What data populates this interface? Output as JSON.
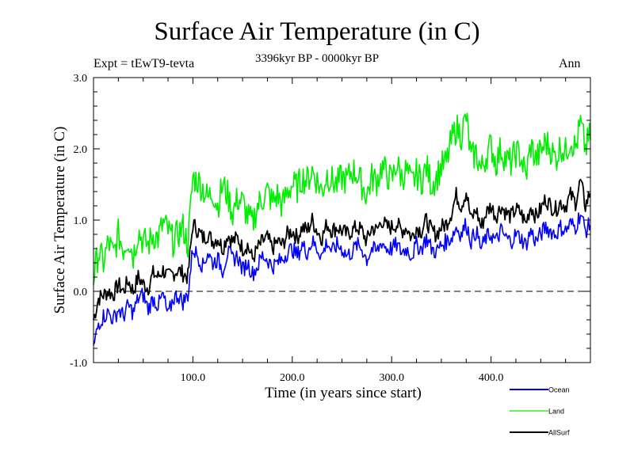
{
  "header": {
    "title": "Surface Air Temperature (in C)",
    "subtitle": "3396kyr BP - 0000kyr BP",
    "experiment": "Expt = tEwT9-tevta",
    "season": "Ann"
  },
  "chart_data": {
    "type": "line",
    "title": "Surface Air Temperature (in C)",
    "subtitle": "3396kyr BP - 0000kyr BP",
    "xlabel": "Time (in years since start)",
    "ylabel": "Surface Air Temperature (in C)",
    "xlim": [
      0,
      500
    ],
    "ylim": [
      -1.0,
      3.0
    ],
    "xticks": [
      100,
      200,
      300,
      400
    ],
    "xtick_labels": [
      "100.0",
      "200.0",
      "300.0",
      "400.0"
    ],
    "yticks": [
      -1.0,
      0.0,
      1.0,
      2.0,
      3.0
    ],
    "ytick_labels": [
      "-1.0",
      "0.0",
      "1.0",
      "2.0",
      "3.0"
    ],
    "reference_line": {
      "y": 0.0,
      "style": "dashed"
    },
    "grid": false,
    "legend_position": "bottom-right, outside plot",
    "x_step": 5,
    "series": [
      {
        "name": "Ocean",
        "color": "#0000ff",
        "values": [
          -0.8,
          -0.45,
          -0.35,
          -0.3,
          -0.4,
          -0.25,
          -0.35,
          -0.2,
          -0.3,
          -0.1,
          -0.05,
          -0.25,
          -0.1,
          -0.2,
          -0.05,
          -0.35,
          -0.1,
          -0.05,
          -0.15,
          -0.05,
          0.6,
          0.5,
          0.35,
          0.55,
          0.4,
          0.45,
          0.3,
          0.55,
          0.45,
          0.5,
          0.3,
          0.4,
          0.25,
          0.35,
          0.5,
          0.45,
          0.35,
          0.4,
          0.45,
          0.55,
          0.6,
          0.5,
          0.65,
          0.55,
          0.7,
          0.6,
          0.5,
          0.7,
          0.55,
          0.65,
          0.6,
          0.5,
          0.55,
          0.65,
          0.6,
          0.45,
          0.6,
          0.55,
          0.7,
          0.6,
          0.6,
          0.65,
          0.55,
          0.6,
          0.5,
          0.65,
          0.6,
          0.75,
          0.6,
          0.55,
          0.65,
          0.7,
          0.75,
          0.9,
          0.8,
          0.95,
          0.7,
          0.85,
          0.6,
          0.75,
          0.8,
          0.7,
          0.85,
          0.75,
          0.7,
          0.8,
          0.75,
          0.65,
          0.85,
          0.7,
          0.8,
          0.9,
          0.85,
          0.8,
          0.9,
          0.85,
          0.95,
          0.9,
          1.1,
          0.85,
          0.95
        ]
      },
      {
        "name": "Land",
        "color": "#00ee00",
        "values": [
          0.2,
          0.55,
          0.4,
          0.7,
          0.5,
          0.8,
          0.6,
          0.75,
          0.5,
          0.85,
          0.7,
          0.65,
          0.8,
          0.75,
          0.95,
          0.85,
          0.7,
          0.8,
          0.9,
          0.65,
          1.6,
          1.55,
          1.45,
          1.3,
          1.4,
          1.2,
          1.5,
          1.35,
          1.1,
          1.3,
          1.25,
          1.05,
          0.95,
          1.2,
          1.3,
          1.4,
          1.25,
          1.35,
          1.2,
          1.4,
          1.5,
          1.45,
          1.6,
          1.55,
          1.7,
          1.55,
          1.4,
          1.65,
          1.55,
          1.5,
          1.6,
          1.55,
          1.7,
          1.65,
          1.5,
          1.35,
          1.6,
          1.55,
          1.75,
          1.65,
          1.55,
          1.8,
          1.6,
          1.7,
          1.5,
          1.65,
          1.55,
          1.75,
          1.5,
          1.6,
          1.75,
          1.8,
          2.1,
          2.3,
          2.2,
          2.45,
          1.85,
          1.95,
          1.7,
          1.9,
          2.05,
          1.8,
          2.0,
          1.85,
          1.8,
          1.95,
          1.9,
          1.6,
          2.05,
          1.85,
          1.95,
          2.1,
          2.0,
          1.85,
          2.05,
          1.95,
          2.15,
          2.0,
          2.35,
          2.0,
          2.2
        ]
      },
      {
        "name": "AllSurf",
        "color": "#000000",
        "values": [
          -0.4,
          -0.1,
          -0.05,
          0.0,
          -0.05,
          0.1,
          0.0,
          0.15,
          0.0,
          0.2,
          0.1,
          0.05,
          0.25,
          0.2,
          0.3,
          0.2,
          0.25,
          0.3,
          0.25,
          0.2,
          0.95,
          0.85,
          0.75,
          0.8,
          0.7,
          0.75,
          0.6,
          0.8,
          0.7,
          0.75,
          0.6,
          0.65,
          0.45,
          0.6,
          0.7,
          0.75,
          0.6,
          0.7,
          0.65,
          0.8,
          0.85,
          0.75,
          0.9,
          0.85,
          1.0,
          0.85,
          0.75,
          0.95,
          0.85,
          0.9,
          0.85,
          0.8,
          0.85,
          0.9,
          0.85,
          0.7,
          0.9,
          0.85,
          1.0,
          0.9,
          0.9,
          0.95,
          0.85,
          0.9,
          0.75,
          0.9,
          0.85,
          1.0,
          0.85,
          0.8,
          0.9,
          0.95,
          1.1,
          1.35,
          1.2,
          1.4,
          1.0,
          1.15,
          0.9,
          1.1,
          1.2,
          1.05,
          1.2,
          1.1,
          1.05,
          1.15,
          1.1,
          0.95,
          1.2,
          1.05,
          1.15,
          1.3,
          1.2,
          1.15,
          1.25,
          1.2,
          1.35,
          1.25,
          1.55,
          1.2,
          1.4
        ]
      }
    ]
  }
}
